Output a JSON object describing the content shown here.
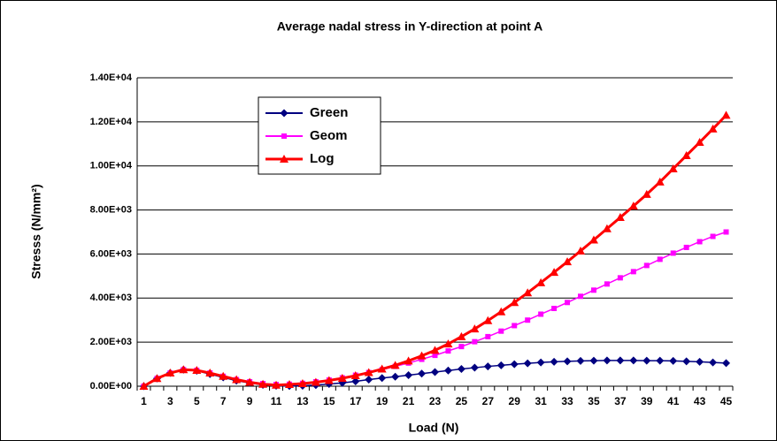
{
  "chart_data": {
    "type": "line",
    "title": "Average nadal stress in Y-direction at point A",
    "x_label": "Load (N)",
    "y_label": "Stresss (N/mm²)",
    "categories": [
      1,
      null,
      3,
      null,
      5,
      null,
      7,
      null,
      9,
      null,
      11,
      null,
      13,
      null,
      15,
      null,
      17,
      null,
      19,
      null,
      21,
      null,
      23,
      null,
      25,
      null,
      27,
      null,
      29,
      null,
      31,
      null,
      33,
      null,
      35,
      null,
      37,
      null,
      39,
      null,
      41,
      null,
      43,
      null,
      45
    ],
    "series": [
      {
        "name": "Green",
        "color": "#000080",
        "marker": "diamond",
        "values": [
          0,
          350,
          600,
          750,
          700,
          550,
          400,
          250,
          150,
          60,
          20,
          10,
          20,
          50,
          100,
          150,
          220,
          300,
          370,
          430,
          500,
          570,
          640,
          710,
          780,
          840,
          900,
          950,
          1000,
          1040,
          1080,
          1110,
          1130,
          1150,
          1160,
          1170,
          1170,
          1170,
          1160,
          1160,
          1150,
          1130,
          1110,
          1080,
          1050
        ]
      },
      {
        "name": "Geom",
        "color": "#ff00ff",
        "marker": "square",
        "values": [
          0,
          350,
          600,
          750,
          720,
          600,
          450,
          300,
          200,
          120,
          80,
          90,
          130,
          200,
          280,
          380,
          500,
          620,
          750,
          900,
          1050,
          1220,
          1400,
          1600,
          1800,
          2020,
          2250,
          2500,
          2750,
          3000,
          3270,
          3530,
          3800,
          4080,
          4360,
          4640,
          4920,
          5200,
          5480,
          5760,
          6040,
          6300,
          6560,
          6800,
          7000
        ]
      },
      {
        "name": "Log",
        "color": "#ff0000",
        "marker": "triangle",
        "values": [
          0,
          350,
          600,
          750,
          720,
          600,
          450,
          300,
          180,
          90,
          50,
          80,
          120,
          180,
          260,
          360,
          480,
          620,
          780,
          950,
          1150,
          1380,
          1630,
          1920,
          2250,
          2600,
          2980,
          3380,
          3800,
          4240,
          4700,
          5170,
          5650,
          6140,
          6640,
          7150,
          7660,
          8180,
          8710,
          9270,
          9870,
          10470,
          11070,
          11680,
          12300
        ]
      }
    ],
    "ylim": [
      0,
      14000
    ],
    "yticks": [
      {
        "value": 0,
        "label": "0.00E+00"
      },
      {
        "value": 2000,
        "label": "2.00E+03"
      },
      {
        "value": 4000,
        "label": "4.00E+03"
      },
      {
        "value": 6000,
        "label": "6.00E+03"
      },
      {
        "value": 8000,
        "label": "8.00E+03"
      },
      {
        "value": 10000,
        "label": "1.00E+04"
      },
      {
        "value": 12000,
        "label": "1.20E+04"
      },
      {
        "value": 14000,
        "label": "1.40E+04"
      }
    ],
    "grid": true
  }
}
